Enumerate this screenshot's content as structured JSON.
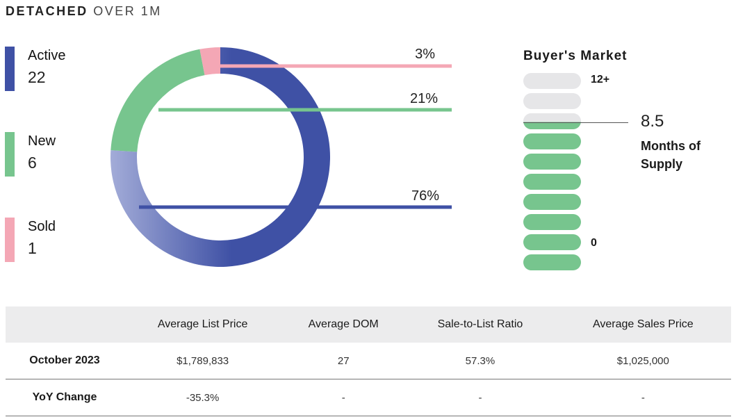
{
  "header": {
    "title_bold": "DETACHED",
    "title_light": "OVER 1M"
  },
  "legend": [
    {
      "label": "Active",
      "value": "22",
      "color": "#3f51a5"
    },
    {
      "label": "New",
      "value": "6",
      "color": "#77c58e"
    },
    {
      "label": "Sold",
      "value": "1",
      "color": "#f4a7b5"
    }
  ],
  "chart_data": {
    "type": "pie",
    "style": "donut",
    "categories": [
      "Active",
      "New",
      "Sold"
    ],
    "values": [
      76,
      21,
      3
    ],
    "counts": [
      22,
      6,
      1
    ],
    "labels": [
      "76%",
      "21%",
      "3%"
    ],
    "colors": [
      "#3f51a5",
      "#77c58e",
      "#f4a7b5"
    ]
  },
  "supply": {
    "title": "Buyer's Market",
    "top_label": "12+",
    "bottom_label": "0",
    "value": "8.5",
    "caption": "Months of Supply",
    "max": 12,
    "current": 8.5,
    "empty_color": "#e6e6e8",
    "fill_color": "#77c58e"
  },
  "table": {
    "headers": [
      "",
      "Average List Price",
      "Average DOM",
      "Sale-to-List Ratio",
      "Average Sales Price"
    ],
    "rows": [
      [
        "October 2023",
        "$1,789,833",
        "27",
        "57.3%",
        "$1,025,000"
      ],
      [
        "YoY Change",
        "-35.3%",
        "-",
        "-",
        "-"
      ]
    ]
  }
}
